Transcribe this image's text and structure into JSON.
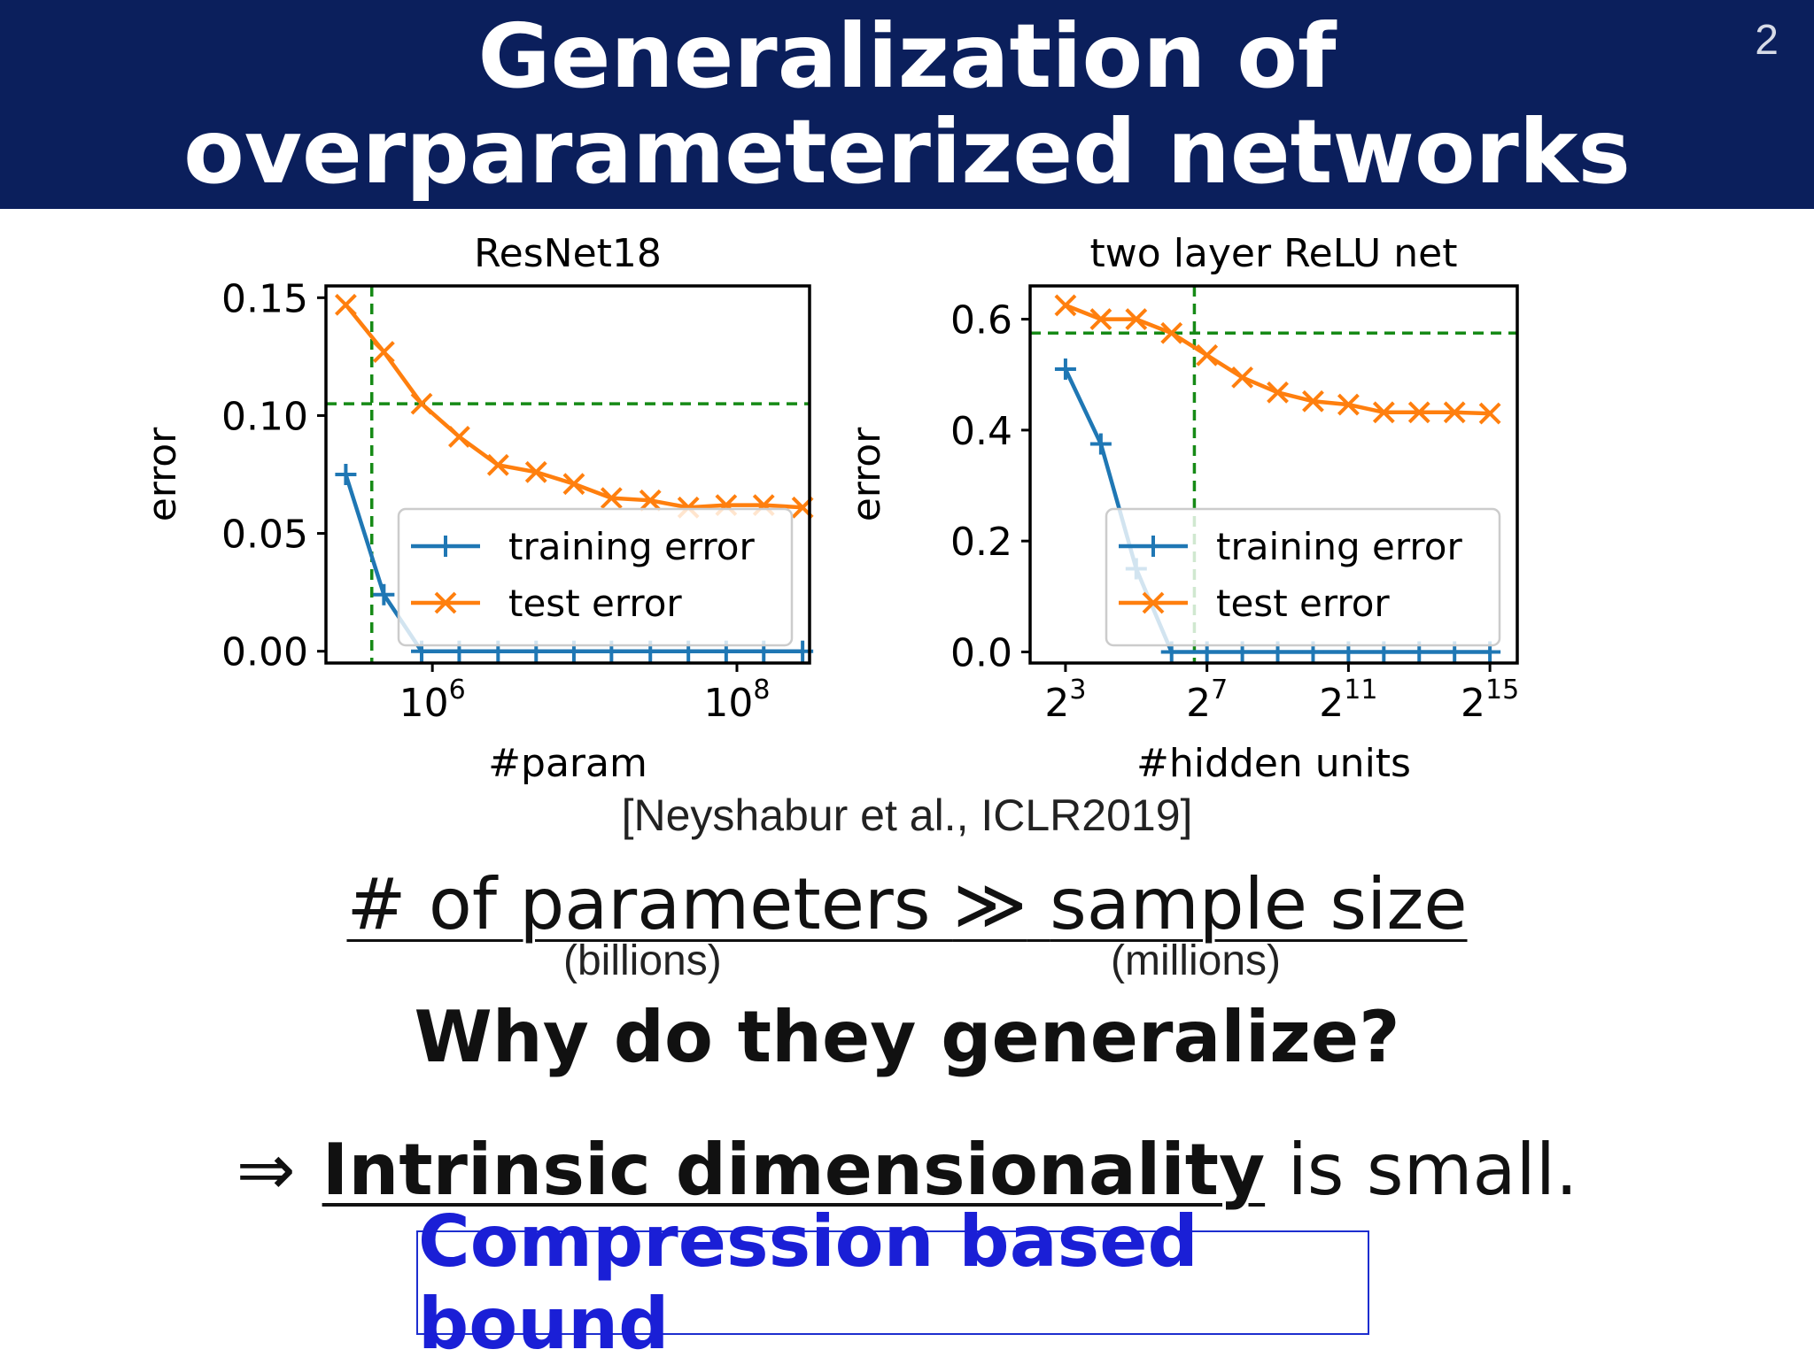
{
  "slide": {
    "title_line1": "Generalization of",
    "title_line2": "overparameterized networks",
    "page_number": "2",
    "citation": "[Neyshabur  et al., ICLR2019]",
    "claim_left": "# of parameters",
    "claim_operator": "≫",
    "claim_right": "sample size",
    "note_left": "(billions)",
    "note_right": "(millions)",
    "question": "Why do they generalize?",
    "answer_arrow": "⇒",
    "answer_emph": "Intrinsic dimensionality",
    "answer_rest": "is small.",
    "bound_label": "Compression based bound"
  },
  "colors": {
    "title_bg": "#0b1f5c",
    "training": "#1f77b4",
    "test": "#ff7f0e",
    "reference_line": "#168a16",
    "bound_text": "#1a1fd6"
  },
  "chart_data": [
    {
      "type": "line",
      "title": "ResNet18",
      "xlabel": "#param",
      "ylabel": "error",
      "x_scale": "log10",
      "xlim": [
        200000,
        300000000
      ],
      "ylim": [
        -0.005,
        0.155
      ],
      "x_ticks": [
        {
          "value": 1000000,
          "base": "10",
          "exp": "6"
        },
        {
          "value": 100000000,
          "base": "10",
          "exp": "8"
        }
      ],
      "y_ticks": [
        {
          "value": 0.0,
          "label": "0.00"
        },
        {
          "value": 0.05,
          "label": "0.05"
        },
        {
          "value": 0.1,
          "label": "0.10"
        },
        {
          "value": 0.15,
          "label": "0.15"
        }
      ],
      "legend_position": "lower right",
      "vline_x": 400000,
      "hline_y": 0.105,
      "series": [
        {
          "name": "training error",
          "marker": "plus",
          "x": [
            270000,
            480000,
            850000,
            1500000,
            2700000,
            4800000,
            8500000,
            15000000,
            27000000,
            48000000,
            85000000,
            150000000,
            270000000
          ],
          "y": [
            0.075,
            0.024,
            0.0,
            0.0,
            0.0,
            0.0,
            0.0,
            0.0,
            0.0,
            0.0,
            0.0,
            0.0,
            0.0
          ]
        },
        {
          "name": "test error",
          "marker": "x",
          "x": [
            270000,
            480000,
            850000,
            1500000,
            2700000,
            4800000,
            8500000,
            15000000,
            27000000,
            48000000,
            85000000,
            150000000,
            270000000
          ],
          "y": [
            0.147,
            0.127,
            0.105,
            0.091,
            0.079,
            0.076,
            0.071,
            0.065,
            0.064,
            0.061,
            0.062,
            0.062,
            0.061
          ]
        }
      ]
    },
    {
      "type": "line",
      "title": "two layer ReLU net",
      "xlabel": "#hidden units",
      "ylabel": "error",
      "x_scale": "log2",
      "xlim": [
        4,
        56000
      ],
      "ylim": [
        -0.02,
        0.66
      ],
      "x_ticks": [
        {
          "value": 8,
          "base": "2",
          "exp": "3"
        },
        {
          "value": 128,
          "base": "2",
          "exp": "7"
        },
        {
          "value": 2048,
          "base": "2",
          "exp": "11"
        },
        {
          "value": 32768,
          "base": "2",
          "exp": "15"
        }
      ],
      "y_ticks": [
        {
          "value": 0.0,
          "label": "0.0"
        },
        {
          "value": 0.2,
          "label": "0.2"
        },
        {
          "value": 0.4,
          "label": "0.4"
        },
        {
          "value": 0.6,
          "label": "0.6"
        }
      ],
      "legend_position": "lower right",
      "vline_x": 100,
      "hline_y": 0.575,
      "series": [
        {
          "name": "training error",
          "marker": "plus",
          "x": [
            8,
            16,
            32,
            64,
            128,
            256,
            512,
            1024,
            2048,
            4096,
            8192,
            16384,
            32768
          ],
          "y": [
            0.51,
            0.375,
            0.15,
            0.0,
            0.0,
            0.0,
            0.0,
            0.0,
            0.0,
            0.0,
            0.0,
            0.0,
            0.0
          ]
        },
        {
          "name": "test error",
          "marker": "x",
          "x": [
            8,
            16,
            32,
            64,
            128,
            256,
            512,
            1024,
            2048,
            4096,
            8192,
            16384,
            32768
          ],
          "y": [
            0.625,
            0.6,
            0.6,
            0.575,
            0.535,
            0.495,
            0.468,
            0.452,
            0.446,
            0.432,
            0.432,
            0.432,
            0.43
          ]
        }
      ]
    }
  ]
}
